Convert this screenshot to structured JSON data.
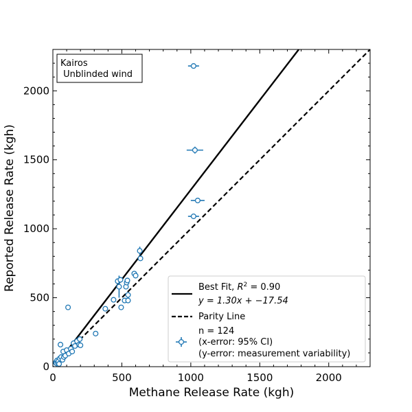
{
  "chart_data": {
    "type": "scatter",
    "xlabel": "Methane Release Rate (kgh)",
    "ylabel": "Reported Release Rate (kgh)",
    "xlim": [
      0,
      2300
    ],
    "ylim": [
      0,
      2300
    ],
    "xticks": [
      0,
      500,
      1000,
      1500,
      2000
    ],
    "xtick_labels": [
      "0",
      "500",
      "1000",
      "1500",
      "2000"
    ],
    "yticks": [
      0,
      500,
      1000,
      1500,
      2000
    ],
    "ytick_labels": [
      "0",
      "500",
      "1000",
      "1500",
      "2000"
    ],
    "grid": false,
    "legend_position": "lower-right",
    "annotation": {
      "line1": "Kairos",
      "line2": " Unblinded wind"
    },
    "colors": {
      "points": "#1f77b4",
      "fit_line": "#000000",
      "parity_line": "#000000"
    },
    "fit": {
      "slope": 1.3,
      "intercept": -17.54,
      "r2": 0.9
    },
    "legend": {
      "fit_line1_prefix": "Best Fit, ",
      "fit_line1_r2_symbol": "R",
      "fit_line1_r2_exp": "2",
      "fit_line1_suffix": " = 0.90",
      "fit_line2": "y = 1.30x + −17.54",
      "parity": "Parity Line",
      "points_line1": "n = 124",
      "points_line2": "(x-error: 95% CI)",
      "points_line3": "(y-error: measurement variability)"
    },
    "points": [
      {
        "x": 5,
        "y": 10
      },
      {
        "x": 10,
        "y": 20
      },
      {
        "x": 15,
        "y": 15
      },
      {
        "x": 20,
        "y": 30
      },
      {
        "x": 25,
        "y": 25
      },
      {
        "x": 30,
        "y": 45
      },
      {
        "x": 35,
        "y": 30
      },
      {
        "x": 40,
        "y": 40
      },
      {
        "x": 45,
        "y": 20
      },
      {
        "x": 50,
        "y": 60
      },
      {
        "x": 55,
        "y": 160
      },
      {
        "x": 60,
        "y": 70
      },
      {
        "x": 70,
        "y": 50
      },
      {
        "x": 75,
        "y": 110
      },
      {
        "x": 80,
        "y": 70
      },
      {
        "x": 90,
        "y": 80
      },
      {
        "x": 100,
        "y": 120
      },
      {
        "x": 110,
        "y": 430
      },
      {
        "x": 115,
        "y": 95
      },
      {
        "x": 130,
        "y": 130
      },
      {
        "x": 140,
        "y": 110
      },
      {
        "x": 150,
        "y": 170
      },
      {
        "x": 160,
        "y": 150
      },
      {
        "x": 175,
        "y": 185
      },
      {
        "x": 190,
        "y": 160
      },
      {
        "x": 195,
        "y": 200
      },
      {
        "x": 200,
        "y": 155
      },
      {
        "x": 310,
        "y": 240
      },
      {
        "x": 380,
        "y": 420
      },
      {
        "x": 440,
        "y": 485
      },
      {
        "x": 470,
        "y": 620
      },
      {
        "x": 480,
        "y": 580,
        "yerr": 80
      },
      {
        "x": 490,
        "y": 630
      },
      {
        "x": 495,
        "y": 430
      },
      {
        "x": 520,
        "y": 480
      },
      {
        "x": 530,
        "y": 580
      },
      {
        "x": 535,
        "y": 610
      },
      {
        "x": 540,
        "y": 625
      },
      {
        "x": 545,
        "y": 520
      },
      {
        "x": 545,
        "y": 480
      },
      {
        "x": 590,
        "y": 675
      },
      {
        "x": 600,
        "y": 660
      },
      {
        "x": 630,
        "y": 840,
        "yerr": 30
      },
      {
        "x": 635,
        "y": 785
      },
      {
        "x": 1020,
        "y": 1090,
        "xerr": 40
      },
      {
        "x": 1020,
        "y": 2180,
        "xerr": 40
      },
      {
        "x": 1030,
        "y": 1570,
        "xerr": 60,
        "yerr": 25
      },
      {
        "x": 1050,
        "y": 1205,
        "xerr": 50
      }
    ]
  }
}
